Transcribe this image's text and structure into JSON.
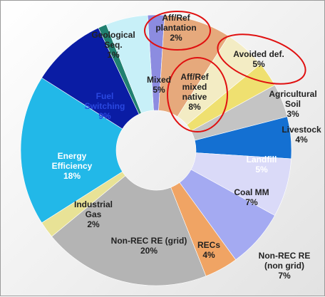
{
  "chart_data": {
    "type": "donut",
    "categories": [
      "Aff/Ref plantation",
      "Aff/Ref mixed native",
      "Avoided def.",
      "Agricultural Soil",
      "Livestock",
      "Landfill",
      "Coal MM",
      "Non-REC RE (non grid)",
      "RECs",
      "Non-REC RE (grid)",
      "Industrial Gas",
      "Energy Efficiency",
      "Fuel Switching",
      "Geological Seq.",
      "Mixed"
    ],
    "values": [
      2,
      8,
      5,
      3,
      4,
      5,
      7,
      7,
      4,
      20,
      2,
      18,
      9,
      1,
      5
    ],
    "value_labels": [
      "2%",
      "8%",
      "5%",
      "3%",
      "4%",
      "5%",
      "7%",
      "7%",
      "4%",
      "20%",
      "2%",
      "18%",
      "9%",
      "1%",
      "5%"
    ],
    "colors": [
      "#8c8ce0",
      "#e6a97c",
      "#f3ecc4",
      "#efe070",
      "#c4c4c4",
      "#1470d2",
      "#dadaf8",
      "#a4aaf2",
      "#f0a464",
      "#b4b4b4",
      "#e8e296",
      "#22b8e8",
      "#0a1ca4",
      "#208070",
      "#c8f0f8"
    ]
  }
}
